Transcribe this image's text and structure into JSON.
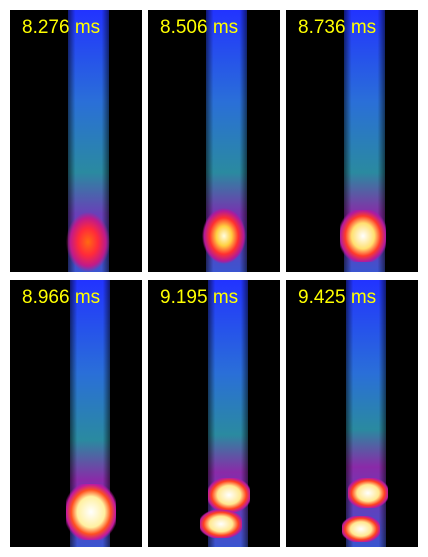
{
  "background_color": "#ffffff",
  "label_color": "#ffff00",
  "frames": [
    {
      "label": "8.276 ms"
    },
    {
      "label": "8.506 ms"
    },
    {
      "label": "8.736 ms"
    },
    {
      "label": "8.966 ms"
    },
    {
      "label": "9.195 ms"
    },
    {
      "label": "9.425 ms"
    }
  ]
}
